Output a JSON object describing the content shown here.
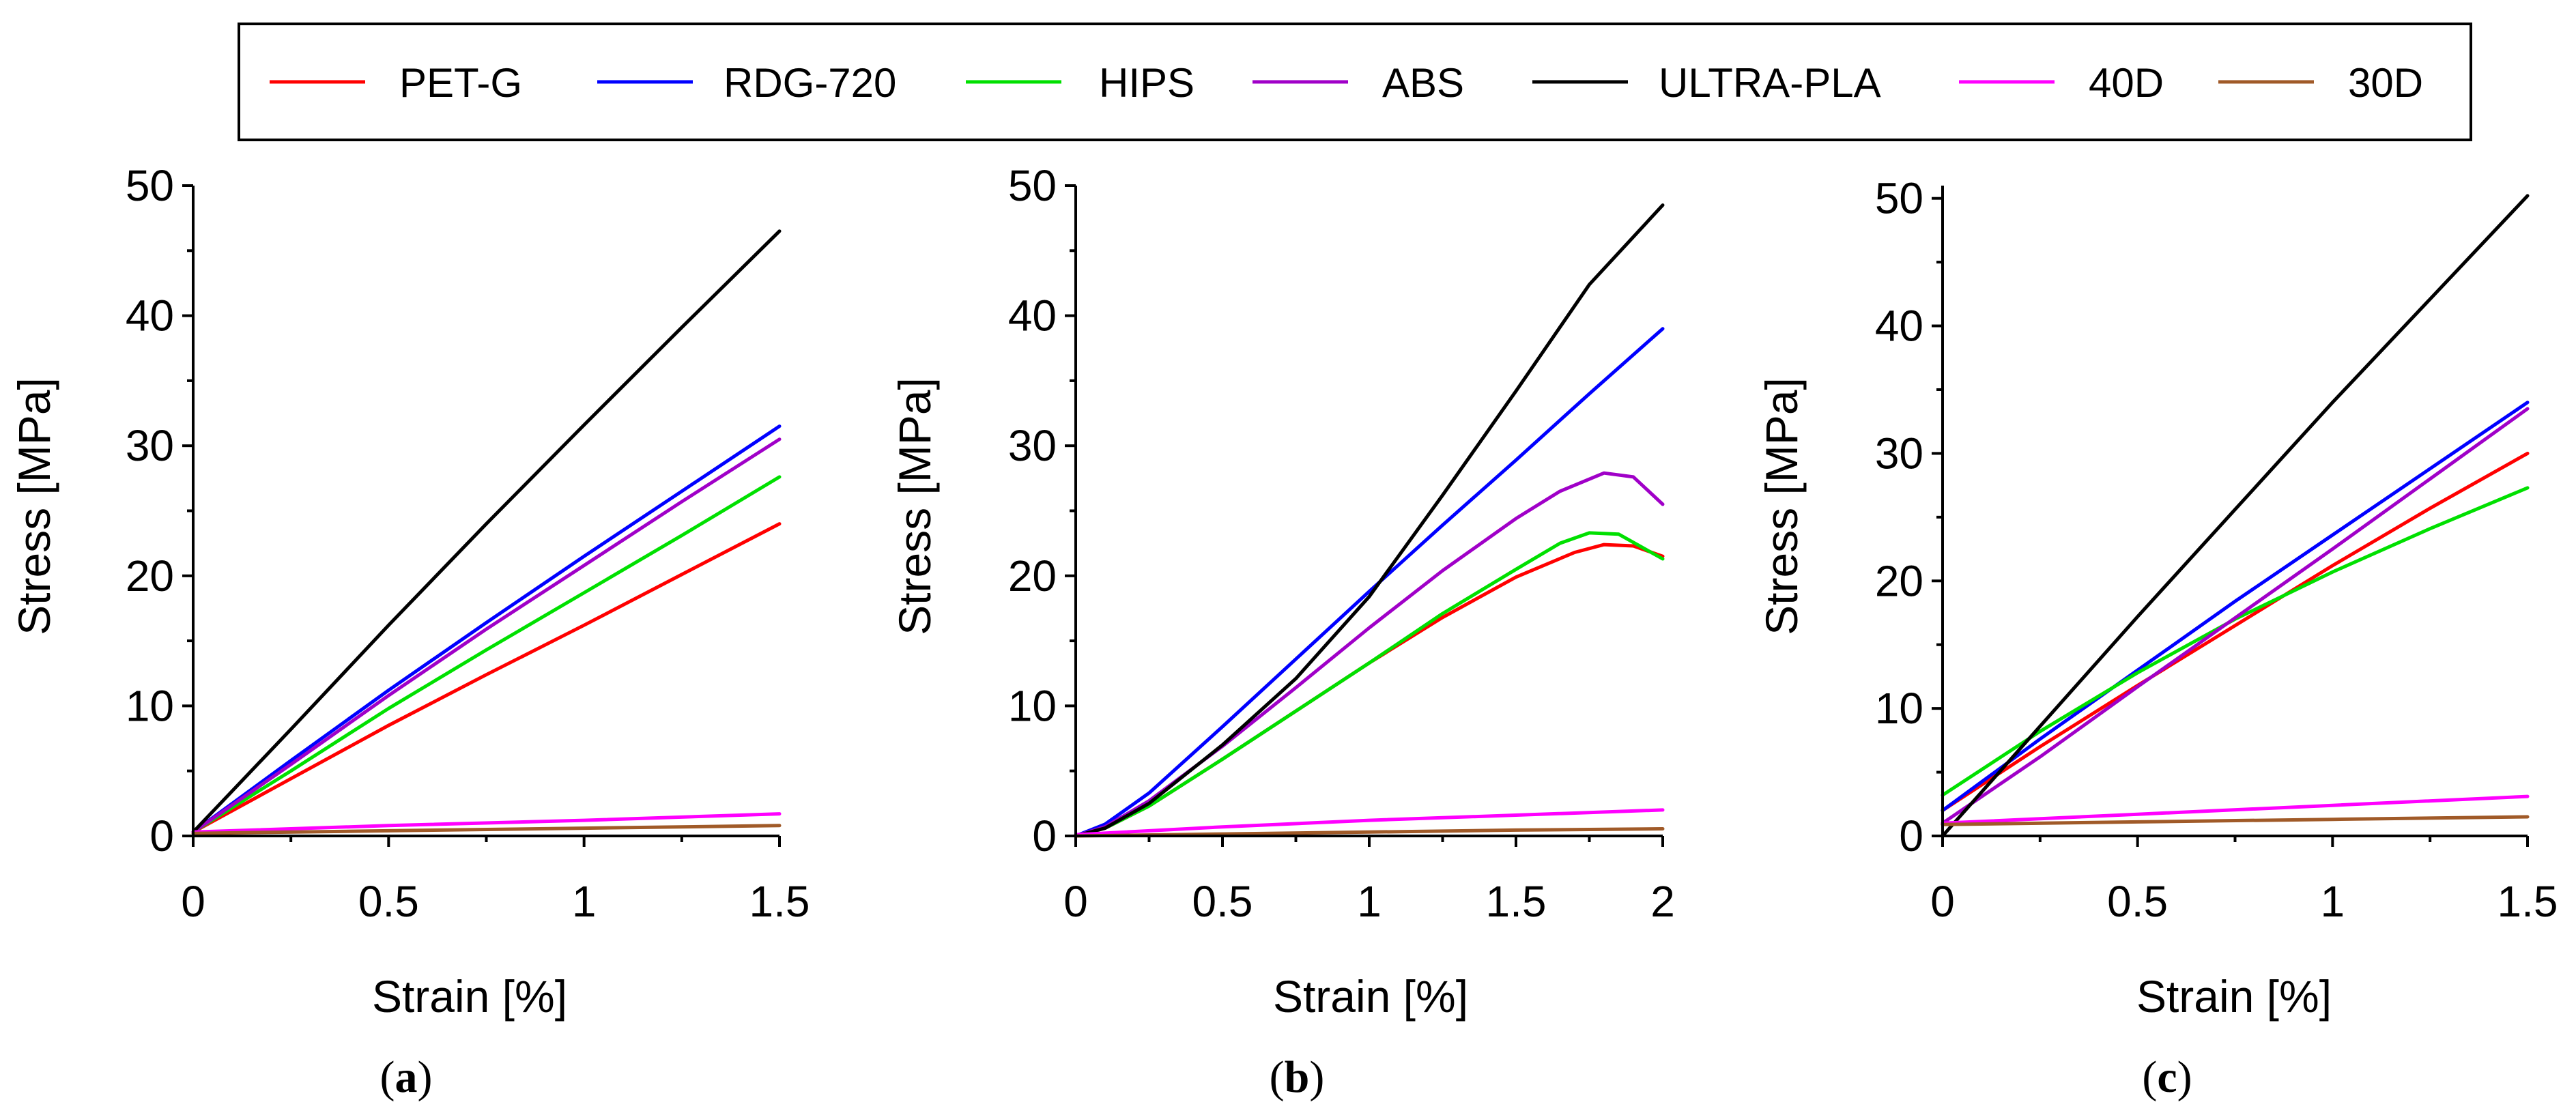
{
  "legend": [
    {
      "name": "PET-G",
      "color": "#ff0000"
    },
    {
      "name": "RDG-720",
      "color": "#0000ff"
    },
    {
      "name": "HIPS",
      "color": "#00e000"
    },
    {
      "name": "ABS",
      "color": "#a000c8"
    },
    {
      "name": "ULTRA-PLA",
      "color": "#000000"
    },
    {
      "name": "40D",
      "color": "#ff00ff"
    },
    {
      "name": "30D",
      "color": "#a05a28"
    }
  ],
  "chart_data": [
    {
      "type": "line",
      "panel": "a",
      "label_open": "(",
      "label_letter": "a",
      "label_close": ")",
      "xlabel": "Strain [%]",
      "ylabel": "Stress [MPa]",
      "xlim": [
        0,
        1.5
      ],
      "ylim": [
        0,
        50
      ],
      "xticks": [
        0,
        0.5,
        1,
        1.5
      ],
      "xtick_labels": [
        "0",
        "0.5",
        "1",
        "1.5"
      ],
      "yticks": [
        0,
        10,
        20,
        30,
        40,
        50
      ],
      "ytick_labels": [
        "0",
        "10",
        "20",
        "30",
        "40",
        "50"
      ],
      "series": [
        {
          "name": "PET-G",
          "x": [
            0,
            0.25,
            0.5,
            0.75,
            1,
            1.25,
            1.5
          ],
          "y": [
            0.3,
            4.4,
            8.5,
            12.4,
            16.2,
            20.1,
            24.0
          ]
        },
        {
          "name": "RDG-720",
          "x": [
            0,
            0.25,
            0.5,
            0.75,
            1,
            1.25,
            1.5
          ],
          "y": [
            0.3,
            5.8,
            11.2,
            16.4,
            21.5,
            26.5,
            31.5
          ]
        },
        {
          "name": "HIPS",
          "x": [
            0,
            0.25,
            0.5,
            0.75,
            1,
            1.25,
            1.5
          ],
          "y": [
            0.3,
            5.0,
            9.8,
            14.3,
            18.7,
            23.1,
            27.6
          ]
        },
        {
          "name": "ABS",
          "x": [
            0,
            0.25,
            0.5,
            0.75,
            1,
            1.25,
            1.5
          ],
          "y": [
            0.3,
            5.5,
            10.8,
            15.9,
            20.8,
            25.7,
            30.5
          ]
        },
        {
          "name": "ULTRA-PLA",
          "x": [
            0,
            0.25,
            0.5,
            0.75,
            1,
            1.25,
            1.5
          ],
          "y": [
            0.3,
            8.2,
            16.2,
            24.0,
            31.6,
            39.1,
            46.5
          ]
        },
        {
          "name": "40D",
          "x": [
            0,
            0.5,
            1,
            1.5
          ],
          "y": [
            0.3,
            0.8,
            1.2,
            1.7
          ]
        },
        {
          "name": "30D",
          "x": [
            0,
            0.5,
            1,
            1.5
          ],
          "y": [
            0.2,
            0.4,
            0.6,
            0.8
          ]
        }
      ]
    },
    {
      "type": "line",
      "panel": "b",
      "label_open": "(",
      "label_letter": "b",
      "label_close": ")",
      "xlabel": "Strain [%]",
      "ylabel": "Stress [MPa]",
      "xlim": [
        0,
        2
      ],
      "ylim": [
        0,
        50
      ],
      "xticks": [
        0,
        0.5,
        1,
        1.5,
        2
      ],
      "xtick_labels": [
        "0",
        "0.5",
        "1",
        "1.5",
        "2"
      ],
      "yticks": [
        0,
        10,
        20,
        30,
        40,
        50
      ],
      "ytick_labels": [
        "0",
        "10",
        "20",
        "30",
        "40",
        "50"
      ],
      "series": [
        {
          "name": "PET-G",
          "x": [
            0,
            0.1,
            0.25,
            0.5,
            0.75,
            1,
            1.25,
            1.5,
            1.7,
            1.8,
            1.9,
            2
          ],
          "y": [
            0,
            0.6,
            2.3,
            5.9,
            9.6,
            13.3,
            16.8,
            19.9,
            21.8,
            22.4,
            22.3,
            21.5
          ]
        },
        {
          "name": "RDG-720",
          "x": [
            0,
            0.1,
            0.25,
            0.5,
            0.75,
            1,
            1.25,
            1.5,
            1.75,
            2
          ],
          "y": [
            0,
            0.9,
            3.3,
            8.4,
            13.6,
            18.8,
            23.9,
            28.9,
            34.0,
            39.0
          ]
        },
        {
          "name": "HIPS",
          "x": [
            0,
            0.1,
            0.25,
            0.5,
            0.75,
            1,
            1.25,
            1.5,
            1.65,
            1.75,
            1.85,
            2
          ],
          "y": [
            0,
            0.6,
            2.3,
            5.9,
            9.6,
            13.3,
            17.1,
            20.5,
            22.5,
            23.3,
            23.2,
            21.3
          ]
        },
        {
          "name": "ABS",
          "x": [
            0,
            0.1,
            0.25,
            0.5,
            0.75,
            1,
            1.25,
            1.5,
            1.65,
            1.8,
            1.9,
            2
          ],
          "y": [
            0,
            0.7,
            2.7,
            6.9,
            11.4,
            16.0,
            20.4,
            24.4,
            26.5,
            27.9,
            27.6,
            25.5
          ]
        },
        {
          "name": "ULTRA-PLA",
          "x": [
            0,
            0.1,
            0.25,
            0.5,
            0.75,
            1,
            1.25,
            1.5,
            1.75,
            2
          ],
          "y": [
            0,
            0.6,
            2.5,
            7.0,
            12.1,
            18.4,
            26.2,
            34.2,
            42.4,
            48.5
          ]
        },
        {
          "name": "40D",
          "x": [
            0,
            0.5,
            1,
            1.5,
            2
          ],
          "y": [
            0.1,
            0.7,
            1.2,
            1.6,
            2.0
          ]
        },
        {
          "name": "30D",
          "x": [
            0,
            0.5,
            1,
            1.5,
            2
          ],
          "y": [
            0,
            0.15,
            0.3,
            0.45,
            0.55
          ]
        }
      ]
    },
    {
      "type": "line",
      "panel": "c",
      "label_open": "(",
      "label_letter": "c",
      "label_close": ")",
      "xlabel": "Strain [%]",
      "ylabel": "Stress [MPa]",
      "xlim": [
        0,
        1.5
      ],
      "ylim": [
        0,
        51
      ],
      "xticks": [
        0,
        0.5,
        1,
        1.5
      ],
      "xtick_labels": [
        "0",
        "0.5",
        "1",
        "1.5"
      ],
      "yticks": [
        0,
        10,
        20,
        30,
        40,
        50
      ],
      "ytick_labels": [
        "0",
        "10",
        "20",
        "30",
        "40",
        "50"
      ],
      "series": [
        {
          "name": "PET-G",
          "x": [
            0,
            0.25,
            0.5,
            0.75,
            1,
            1.25,
            1.5
          ],
          "y": [
            2.0,
            7.0,
            11.8,
            16.5,
            21.2,
            25.7,
            30.0
          ]
        },
        {
          "name": "RDG-720",
          "x": [
            0,
            0.25,
            0.5,
            0.75,
            1,
            1.25,
            1.5
          ],
          "y": [
            2.0,
            7.6,
            13.0,
            18.4,
            23.6,
            28.8,
            34.0
          ]
        },
        {
          "name": "HIPS",
          "x": [
            0,
            0.25,
            0.5,
            0.75,
            1,
            1.25,
            1.5
          ],
          "y": [
            3.2,
            8.2,
            12.8,
            17.0,
            20.7,
            24.1,
            27.3
          ]
        },
        {
          "name": "ABS",
          "x": [
            0,
            0.25,
            0.5,
            0.75,
            1,
            1.25,
            1.5
          ],
          "y": [
            1.0,
            6.2,
            11.7,
            17.1,
            22.5,
            28.0,
            33.5
          ]
        },
        {
          "name": "ULTRA-PLA",
          "x": [
            0,
            0.25,
            0.5,
            0.75,
            1,
            1.25,
            1.5
          ],
          "y": [
            0.0,
            8.6,
            17.2,
            25.6,
            34.0,
            42.1,
            50.2
          ]
        },
        {
          "name": "40D",
          "x": [
            0,
            0.5,
            1,
            1.5
          ],
          "y": [
            1.0,
            1.7,
            2.4,
            3.1
          ]
        },
        {
          "name": "30D",
          "x": [
            0,
            0.5,
            1,
            1.5
          ],
          "y": [
            0.9,
            1.1,
            1.3,
            1.5
          ]
        }
      ]
    }
  ]
}
